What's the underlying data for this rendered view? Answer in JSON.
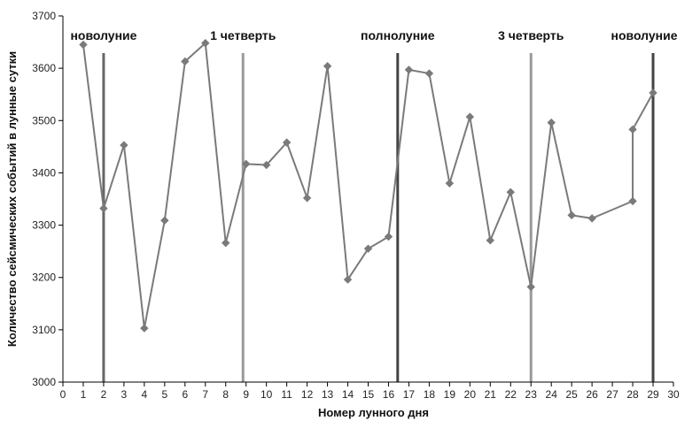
{
  "chart_data": {
    "type": "line",
    "title": "",
    "xlabel": "Номер лунного дня",
    "ylabel": "Количество сейсмических событий в лунные сутки",
    "xlim": [
      0,
      30
    ],
    "ylim": [
      3000,
      3700
    ],
    "x_ticks": [
      0,
      1,
      2,
      3,
      4,
      5,
      6,
      7,
      8,
      9,
      10,
      11,
      12,
      13,
      14,
      15,
      16,
      17,
      18,
      19,
      20,
      21,
      22,
      23,
      24,
      25,
      26,
      27,
      28,
      29,
      30
    ],
    "y_ticks": [
      3000,
      3100,
      3200,
      3300,
      3400,
      3500,
      3600,
      3700
    ],
    "grid": false,
    "legend": "none",
    "series": [
      {
        "color": "#7a7a7a",
        "marker": "diamond",
        "points": [
          {
            "x": 1.0,
            "y": 3645
          },
          {
            "x": 2.0,
            "y": 3332
          },
          {
            "x": 3.0,
            "y": 3453
          },
          {
            "x": 4.0,
            "y": 3103
          },
          {
            "x": 5.0,
            "y": 3309
          },
          {
            "x": 6.0,
            "y": 3613
          },
          {
            "x": 7.0,
            "y": 3648
          },
          {
            "x": 8.0,
            "y": 3266
          },
          {
            "x": 9.0,
            "y": 3417
          },
          {
            "x": 10.0,
            "y": 3415
          },
          {
            "x": 11.0,
            "y": 3458
          },
          {
            "x": 12.0,
            "y": 3352
          },
          {
            "x": 13.0,
            "y": 3604
          },
          {
            "x": 14.0,
            "y": 3196
          },
          {
            "x": 15.0,
            "y": 3255
          },
          {
            "x": 16.0,
            "y": 3278
          },
          {
            "x": 17.0,
            "y": 3597
          },
          {
            "x": 18.0,
            "y": 3590
          },
          {
            "x": 19.0,
            "y": 3380
          },
          {
            "x": 20.0,
            "y": 3507
          },
          {
            "x": 21.0,
            "y": 3271
          },
          {
            "x": 22.0,
            "y": 3363
          },
          {
            "x": 23.0,
            "y": 3182
          },
          {
            "x": 24.0,
            "y": 3496
          },
          {
            "x": 25.0,
            "y": 3319
          },
          {
            "x": 26.0,
            "y": 3313
          },
          {
            "x": 28.0,
            "y": 3346
          },
          {
            "x": 28.0,
            "y": 3483
          },
          {
            "x": 29.0,
            "y": 3553
          }
        ]
      }
    ],
    "phase_lines": [
      {
        "x": 2.0,
        "label": "новолуние",
        "color": "#666666"
      },
      {
        "x": 8.85,
        "label": "1 четверть",
        "color": "#999999"
      },
      {
        "x": 16.45,
        "label": "полнолуние",
        "color": "#444444"
      },
      {
        "x": 23.0,
        "label": "3 четверть",
        "color": "#999999"
      },
      {
        "x": 29.0,
        "label": "новолуние",
        "color": "#444444"
      }
    ]
  }
}
